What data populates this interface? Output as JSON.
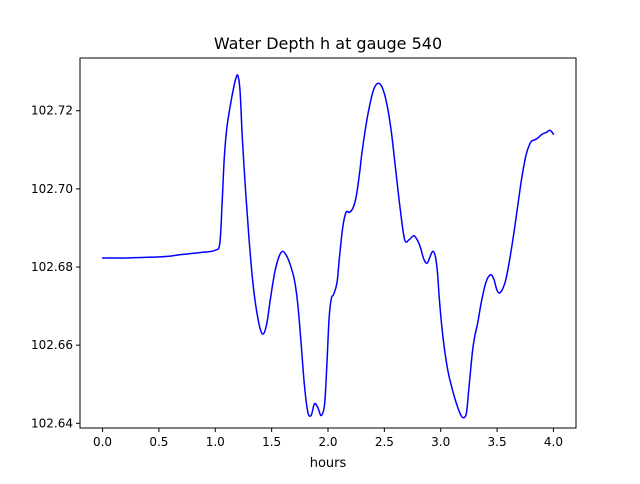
{
  "chart_data": {
    "type": "line",
    "title": "Water Depth h at gauge 540",
    "xlabel": "hours",
    "ylabel": "",
    "xlim": [
      -0.2,
      4.2
    ],
    "ylim": [
      102.6388,
      102.7335
    ],
    "grid": false,
    "legend": "none",
    "colors": {
      "series_line": "#0000ff",
      "axes": "#000000",
      "background": "#ffffff"
    },
    "x_ticks": [
      0.0,
      0.5,
      1.0,
      1.5,
      2.0,
      2.5,
      3.0,
      3.5,
      4.0
    ],
    "x_tick_labels": [
      "0.0",
      "0.5",
      "1.0",
      "1.5",
      "2.0",
      "2.5",
      "3.0",
      "3.5",
      "4.0"
    ],
    "y_ticks": [
      102.64,
      102.66,
      102.68,
      102.7,
      102.72
    ],
    "y_tick_labels": [
      "102.64",
      "102.66",
      "102.68",
      "102.70",
      "102.72"
    ],
    "series": [
      {
        "x": [
          0.0,
          0.1,
          0.2,
          0.3,
          0.4,
          0.5,
          0.6,
          0.7,
          0.8,
          0.9,
          1.0,
          1.04,
          1.06,
          1.08,
          1.1,
          1.12,
          1.15,
          1.18,
          1.2,
          1.22,
          1.24,
          1.27,
          1.3,
          1.33,
          1.36,
          1.4,
          1.43,
          1.46,
          1.49,
          1.53,
          1.57,
          1.6,
          1.63,
          1.66,
          1.7,
          1.73,
          1.76,
          1.79,
          1.82,
          1.85,
          1.88,
          1.91,
          1.94,
          1.97,
          1.99,
          2.01,
          2.03,
          2.05,
          2.08,
          2.1,
          2.13,
          2.16,
          2.19,
          2.22,
          2.25,
          2.28,
          2.3,
          2.33,
          2.36,
          2.4,
          2.44,
          2.48,
          2.52,
          2.56,
          2.6,
          2.64,
          2.68,
          2.72,
          2.76,
          2.79,
          2.82,
          2.85,
          2.88,
          2.91,
          2.93,
          2.95,
          2.97,
          2.99,
          3.02,
          3.06,
          3.1,
          3.14,
          3.18,
          3.21,
          3.23,
          3.25,
          3.28,
          3.3,
          3.33,
          3.36,
          3.4,
          3.44,
          3.47,
          3.5,
          3.53,
          3.57,
          3.6,
          3.64,
          3.68,
          3.72,
          3.76,
          3.8,
          3.83,
          3.86,
          3.9,
          3.94,
          3.97,
          4.0
        ],
        "values": [
          102.6823,
          102.6823,
          102.6823,
          102.6824,
          102.6825,
          102.6826,
          102.6828,
          102.6832,
          102.6835,
          102.6838,
          102.6843,
          102.686,
          102.696,
          102.708,
          102.715,
          102.719,
          102.724,
          102.728,
          102.729,
          102.725,
          102.713,
          102.699,
          102.687,
          102.677,
          102.67,
          102.664,
          102.663,
          102.666,
          102.672,
          102.679,
          102.683,
          102.684,
          102.683,
          102.681,
          102.677,
          102.671,
          102.661,
          102.65,
          102.643,
          102.642,
          102.645,
          102.644,
          102.642,
          102.645,
          102.655,
          102.667,
          102.672,
          102.673,
          102.676,
          102.682,
          102.69,
          102.694,
          102.694,
          102.695,
          102.698,
          102.704,
          102.709,
          102.715,
          102.72,
          102.725,
          102.727,
          102.726,
          102.722,
          102.715,
          102.705,
          102.695,
          102.687,
          102.687,
          102.688,
          102.687,
          102.685,
          102.682,
          102.681,
          102.683,
          102.684,
          102.683,
          102.679,
          102.671,
          102.662,
          102.654,
          102.649,
          102.645,
          102.642,
          102.6415,
          102.643,
          102.649,
          102.658,
          102.662,
          102.666,
          102.671,
          102.676,
          102.678,
          102.677,
          102.674,
          102.6735,
          102.676,
          102.68,
          102.687,
          102.695,
          102.703,
          102.709,
          102.712,
          102.7125,
          102.713,
          102.714,
          102.7145,
          102.715,
          102.714
        ]
      }
    ]
  }
}
